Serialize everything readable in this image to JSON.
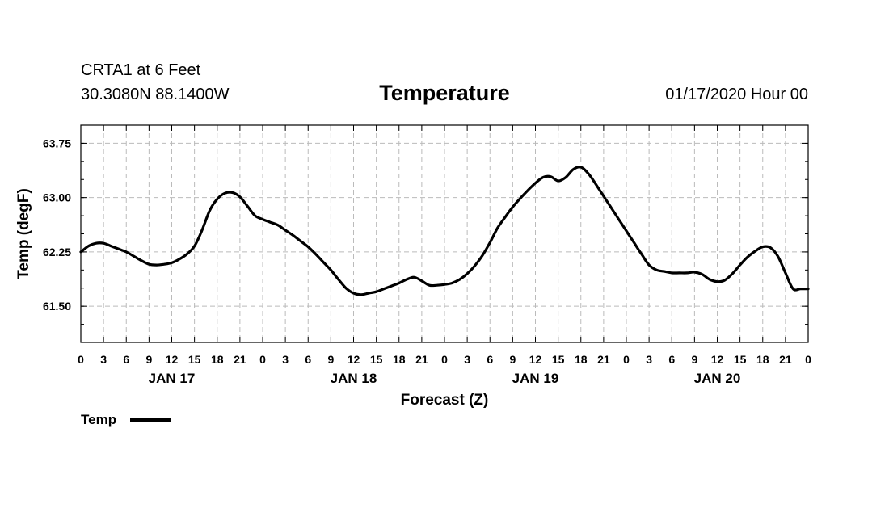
{
  "header": {
    "station": "CRTA1 at 6 Feet",
    "coords": "30.3080N 88.1400W",
    "run_time": "01/17/2020 Hour 00"
  },
  "chart_data": {
    "type": "line",
    "title": "Temperature",
    "xlabel": "Forecast (Z)",
    "ylabel": "Temp (degF)",
    "xlim": [
      0,
      96
    ],
    "ylim": [
      61.0,
      64.0
    ],
    "yticks": [
      "61.50",
      "62.25",
      "63.00",
      "63.75"
    ],
    "ytick_values": [
      61.5,
      62.25,
      63.0,
      63.75
    ],
    "xticks": [
      "0",
      "3",
      "6",
      "9",
      "12",
      "15",
      "18",
      "21",
      "0",
      "3",
      "6",
      "9",
      "12",
      "15",
      "18",
      "21",
      "0",
      "3",
      "6",
      "9",
      "12",
      "15",
      "18",
      "21",
      "0",
      "3",
      "6",
      "9",
      "12",
      "15",
      "18",
      "21",
      "0"
    ],
    "xtick_hours": [
      0,
      3,
      6,
      9,
      12,
      15,
      18,
      21,
      24,
      27,
      30,
      33,
      36,
      39,
      42,
      45,
      48,
      51,
      54,
      57,
      60,
      63,
      66,
      69,
      72,
      75,
      78,
      81,
      84,
      87,
      90,
      93,
      96
    ],
    "day_labels": [
      {
        "label": "JAN 17",
        "hour": 12
      },
      {
        "label": "JAN 18",
        "hour": 36
      },
      {
        "label": "JAN 19",
        "hour": 60
      },
      {
        "label": "JAN 20",
        "hour": 84
      }
    ],
    "series": [
      {
        "name": "Temp",
        "color": "#000000",
        "x": [
          0,
          1,
          2,
          3,
          4,
          5,
          6,
          7,
          8,
          9,
          10,
          11,
          12,
          13,
          14,
          15,
          16,
          17,
          18,
          19,
          20,
          21,
          22,
          23,
          24,
          25,
          26,
          27,
          28,
          29,
          30,
          31,
          32,
          33,
          34,
          35,
          36,
          37,
          38,
          39,
          40,
          41,
          42,
          43,
          44,
          45,
          46,
          47,
          48,
          49,
          50,
          51,
          52,
          53,
          54,
          55,
          56,
          57,
          58,
          59,
          60,
          61,
          62,
          63,
          64,
          65,
          66,
          67,
          68,
          69,
          70,
          71,
          72,
          73,
          74,
          75,
          76,
          77,
          78,
          79,
          80,
          81,
          82,
          83,
          84,
          85,
          86,
          87,
          88,
          89,
          90,
          91,
          92,
          93,
          94,
          95,
          96
        ],
        "values": [
          62.25,
          62.33,
          62.37,
          62.37,
          62.33,
          62.29,
          62.25,
          62.19,
          62.13,
          62.08,
          62.07,
          62.08,
          62.1,
          62.15,
          62.22,
          62.33,
          62.55,
          62.82,
          62.98,
          63.06,
          63.07,
          63.01,
          62.88,
          62.75,
          62.7,
          62.66,
          62.62,
          62.55,
          62.48,
          62.4,
          62.32,
          62.22,
          62.11,
          62.0,
          61.87,
          61.75,
          61.68,
          61.66,
          61.68,
          61.7,
          61.74,
          61.78,
          61.82,
          61.87,
          61.9,
          61.85,
          61.79,
          61.79,
          61.8,
          61.82,
          61.87,
          61.95,
          62.06,
          62.2,
          62.38,
          62.58,
          62.73,
          62.87,
          62.99,
          63.1,
          63.2,
          63.28,
          63.29,
          63.23,
          63.28,
          63.39,
          63.42,
          63.33,
          63.18,
          63.02,
          62.86,
          62.7,
          62.54,
          62.38,
          62.22,
          62.07,
          62.0,
          61.98,
          61.96,
          61.96,
          61.96,
          61.97,
          61.94,
          61.87,
          61.84,
          61.86,
          61.95,
          62.07,
          62.18,
          62.26,
          62.32,
          62.31,
          62.19,
          61.96,
          61.74,
          61.74,
          61.74
        ]
      }
    ],
    "legend": {
      "label": "Temp",
      "position": "bottom-left"
    }
  }
}
